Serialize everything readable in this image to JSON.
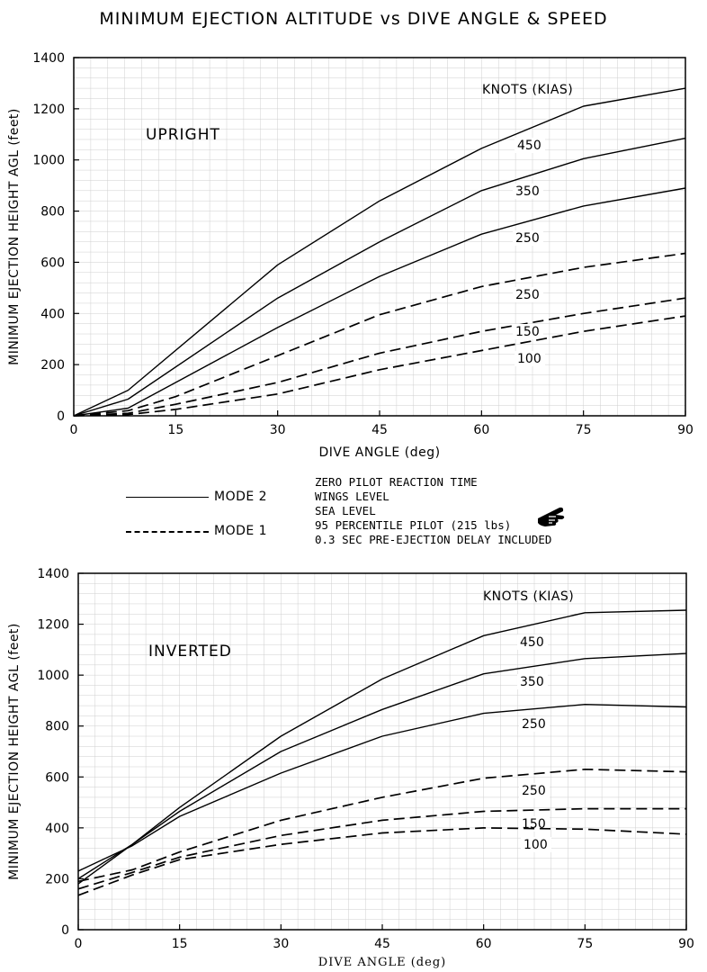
{
  "title": "MINIMUM EJECTION ALTITUDE vs DIVE ANGLE & SPEED",
  "legend": {
    "mode2": "MODE 2",
    "mode1": "MODE 1",
    "notes": [
      "ZERO PILOT REACTION TIME",
      "WINGS LEVEL",
      "SEA LEVEL",
      "95 PERCENTILE PILOT (215 lbs)",
      "0.3 SEC PRE-EJECTION DELAY INCLUDED"
    ],
    "icon": "pointing-hand-icon"
  },
  "chart_data": [
    {
      "type": "line",
      "panel": "UPRIGHT",
      "series_header": "KNOTS (KIAS)",
      "xlabel": "DIVE ANGLE (deg)",
      "ylabel": "MINIMUM EJECTION HEIGHT AGL (feet)",
      "xlim": [
        0,
        90
      ],
      "ylim": [
        0,
        1400
      ],
      "xticks": [
        0,
        15,
        30,
        45,
        60,
        75,
        90
      ],
      "yticks": [
        0,
        200,
        400,
        600,
        800,
        1000,
        1200,
        1400
      ],
      "grid": true,
      "series": [
        {
          "name": "450",
          "mode": "MODE 2",
          "points": [
            [
              0,
              0
            ],
            [
              8,
              100
            ],
            [
              30,
              590
            ],
            [
              45,
              840
            ],
            [
              60,
              1045
            ],
            [
              75,
              1210
            ],
            [
              90,
              1280
            ]
          ]
        },
        {
          "name": "350",
          "mode": "MODE 2",
          "points": [
            [
              0,
              0
            ],
            [
              8,
              65
            ],
            [
              30,
              460
            ],
            [
              45,
              680
            ],
            [
              60,
              880
            ],
            [
              75,
              1005
            ],
            [
              90,
              1085
            ]
          ]
        },
        {
          "name": "250",
          "mode": "MODE 2",
          "points": [
            [
              0,
              0
            ],
            [
              8,
              30
            ],
            [
              30,
              345
            ],
            [
              45,
              545
            ],
            [
              60,
              710
            ],
            [
              75,
              820
            ],
            [
              90,
              890
            ]
          ]
        },
        {
          "name": "250",
          "mode": "MODE 1",
          "points": [
            [
              0,
              0
            ],
            [
              8,
              20
            ],
            [
              15,
              75
            ],
            [
              30,
              235
            ],
            [
              45,
              395
            ],
            [
              60,
              505
            ],
            [
              75,
              580
            ],
            [
              90,
              635
            ]
          ]
        },
        {
          "name": "150",
          "mode": "MODE 1",
          "points": [
            [
              0,
              0
            ],
            [
              8,
              10
            ],
            [
              15,
              45
            ],
            [
              30,
              130
            ],
            [
              45,
              245
            ],
            [
              60,
              330
            ],
            [
              75,
              400
            ],
            [
              90,
              460
            ]
          ]
        },
        {
          "name": "100",
          "mode": "MODE 1",
          "points": [
            [
              0,
              0
            ],
            [
              8,
              5
            ],
            [
              15,
              25
            ],
            [
              30,
              85
            ],
            [
              45,
              180
            ],
            [
              60,
              255
            ],
            [
              75,
              330
            ],
            [
              90,
              390
            ]
          ]
        }
      ]
    },
    {
      "type": "line",
      "panel": "INVERTED",
      "series_header": "KNOTS (KIAS)",
      "xlabel": "DIVE ANGLE (deg)",
      "ylabel": "MINIMUM EJECTION HEIGHT AGL (feet)",
      "xlim": [
        0,
        90
      ],
      "ylim": [
        0,
        1400
      ],
      "xticks": [
        0,
        15,
        30,
        45,
        60,
        75,
        90
      ],
      "yticks": [
        0,
        200,
        400,
        600,
        800,
        1000,
        1200,
        1400
      ],
      "grid": true,
      "series": [
        {
          "name": "450",
          "mode": "MODE 2",
          "points": [
            [
              0,
              180
            ],
            [
              8,
              335
            ],
            [
              15,
              480
            ],
            [
              30,
              760
            ],
            [
              45,
              985
            ],
            [
              60,
              1155
            ],
            [
              75,
              1245
            ],
            [
              90,
              1255
            ]
          ]
        },
        {
          "name": "350",
          "mode": "MODE 2",
          "points": [
            [
              0,
              200
            ],
            [
              8,
              335
            ],
            [
              15,
              465
            ],
            [
              30,
              700
            ],
            [
              45,
              865
            ],
            [
              60,
              1005
            ],
            [
              75,
              1065
            ],
            [
              90,
              1085
            ]
          ]
        },
        {
          "name": "250",
          "mode": "MODE 2",
          "points": [
            [
              0,
              230
            ],
            [
              8,
              330
            ],
            [
              15,
              445
            ],
            [
              30,
              615
            ],
            [
              45,
              760
            ],
            [
              60,
              850
            ],
            [
              75,
              885
            ],
            [
              90,
              875
            ]
          ]
        },
        {
          "name": "250",
          "mode": "MODE 1",
          "points": [
            [
              0,
              190
            ],
            [
              8,
              235
            ],
            [
              15,
              305
            ],
            [
              30,
              430
            ],
            [
              45,
              520
            ],
            [
              60,
              595
            ],
            [
              75,
              630
            ],
            [
              90,
              620
            ]
          ]
        },
        {
          "name": "150",
          "mode": "MODE 1",
          "points": [
            [
              0,
              160
            ],
            [
              8,
              225
            ],
            [
              15,
              285
            ],
            [
              30,
              370
            ],
            [
              45,
              430
            ],
            [
              60,
              465
            ],
            [
              75,
              475
            ],
            [
              90,
              475
            ]
          ]
        },
        {
          "name": "100",
          "mode": "MODE 1",
          "points": [
            [
              0,
              135
            ],
            [
              8,
              215
            ],
            [
              15,
              275
            ],
            [
              30,
              335
            ],
            [
              45,
              380
            ],
            [
              60,
              400
            ],
            [
              75,
              395
            ],
            [
              90,
              375
            ]
          ]
        }
      ]
    }
  ]
}
